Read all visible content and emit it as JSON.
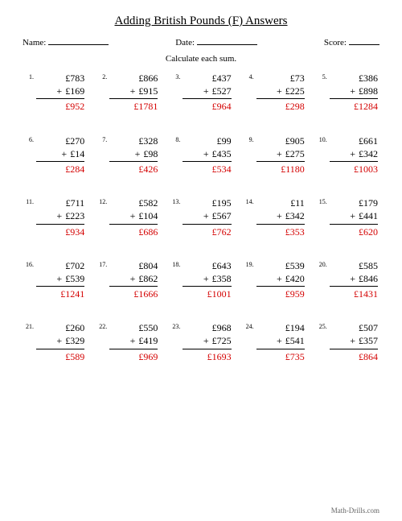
{
  "title": "Adding British Pounds (F) Answers",
  "labels": {
    "name": "Name:",
    "date": "Date:",
    "score": "Score:",
    "instruction": "Calculate each sum."
  },
  "currency": "£",
  "plus": "+",
  "answer_color": "#d40000",
  "text_color": "#000000",
  "background_color": "#ffffff",
  "footer": "Math-Drills.com",
  "problems": [
    {
      "n": "1.",
      "a": "783",
      "b": "169",
      "ans": "952"
    },
    {
      "n": "2.",
      "a": "866",
      "b": "915",
      "ans": "1781"
    },
    {
      "n": "3.",
      "a": "437",
      "b": "527",
      "ans": "964"
    },
    {
      "n": "4.",
      "a": "73",
      "b": "225",
      "ans": "298"
    },
    {
      "n": "5.",
      "a": "386",
      "b": "898",
      "ans": "1284"
    },
    {
      "n": "6.",
      "a": "270",
      "b": "14",
      "ans": "284"
    },
    {
      "n": "7.",
      "a": "328",
      "b": "98",
      "ans": "426"
    },
    {
      "n": "8.",
      "a": "99",
      "b": "435",
      "ans": "534"
    },
    {
      "n": "9.",
      "a": "905",
      "b": "275",
      "ans": "1180"
    },
    {
      "n": "10.",
      "a": "661",
      "b": "342",
      "ans": "1003"
    },
    {
      "n": "11.",
      "a": "711",
      "b": "223",
      "ans": "934"
    },
    {
      "n": "12.",
      "a": "582",
      "b": "104",
      "ans": "686"
    },
    {
      "n": "13.",
      "a": "195",
      "b": "567",
      "ans": "762"
    },
    {
      "n": "14.",
      "a": "11",
      "b": "342",
      "ans": "353"
    },
    {
      "n": "15.",
      "a": "179",
      "b": "441",
      "ans": "620"
    },
    {
      "n": "16.",
      "a": "702",
      "b": "539",
      "ans": "1241"
    },
    {
      "n": "17.",
      "a": "804",
      "b": "862",
      "ans": "1666"
    },
    {
      "n": "18.",
      "a": "643",
      "b": "358",
      "ans": "1001"
    },
    {
      "n": "19.",
      "a": "539",
      "b": "420",
      "ans": "959"
    },
    {
      "n": "20.",
      "a": "585",
      "b": "846",
      "ans": "1431"
    },
    {
      "n": "21.",
      "a": "260",
      "b": "329",
      "ans": "589"
    },
    {
      "n": "22.",
      "a": "550",
      "b": "419",
      "ans": "969"
    },
    {
      "n": "23.",
      "a": "968",
      "b": "725",
      "ans": "1693"
    },
    {
      "n": "24.",
      "a": "194",
      "b": "541",
      "ans": "735"
    },
    {
      "n": "25.",
      "a": "507",
      "b": "357",
      "ans": "864"
    }
  ]
}
